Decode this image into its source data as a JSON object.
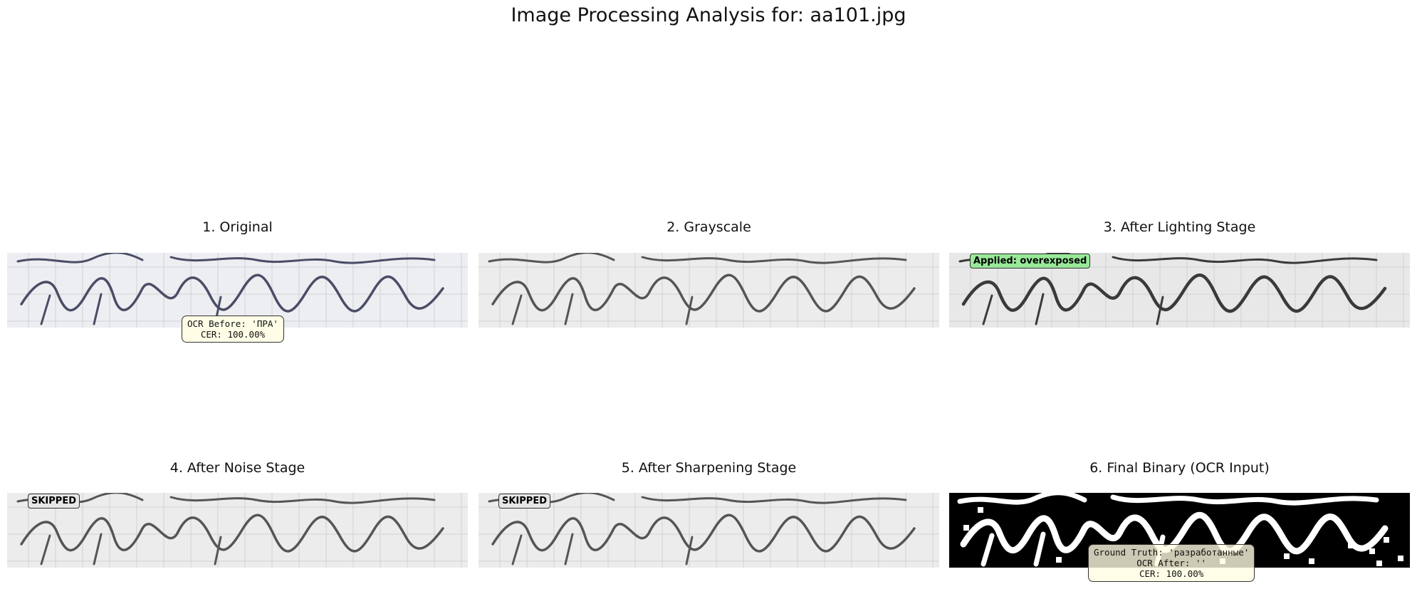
{
  "figure": {
    "title": "Image Processing Analysis for: aa101.jpg"
  },
  "panels": [
    {
      "title": "1. Original",
      "style": "color"
    },
    {
      "title": "2. Grayscale",
      "style": "gray"
    },
    {
      "title": "3. After Lighting Stage",
      "style": "dark",
      "badge": "Applied: overexposed"
    },
    {
      "title": "4. After Noise Stage",
      "style": "gray",
      "badge": "SKIPPED"
    },
    {
      "title": "5. After Sharpening Stage",
      "style": "gray",
      "badge": "SKIPPED"
    },
    {
      "title": "6. Final Binary (OCR Input)",
      "style": "binary"
    }
  ],
  "ocr_before": {
    "line1": "OCR Before: 'ПРА'",
    "line2": "CER: 100.00%"
  },
  "ocr_after": {
    "line1": "Ground Truth: 'разработанные'",
    "line2": "OCR After: ''",
    "line3": "CER: 100.00%"
  },
  "colors": {
    "ink_original": "#4a4d66",
    "ink_gray": "#555555",
    "ink_dark": "#3a3a3a",
    "paper": "#eceeef",
    "applied_badge": "#98e898",
    "skipped_badge": "#e6e6e6",
    "note_box": "#fffde6"
  }
}
